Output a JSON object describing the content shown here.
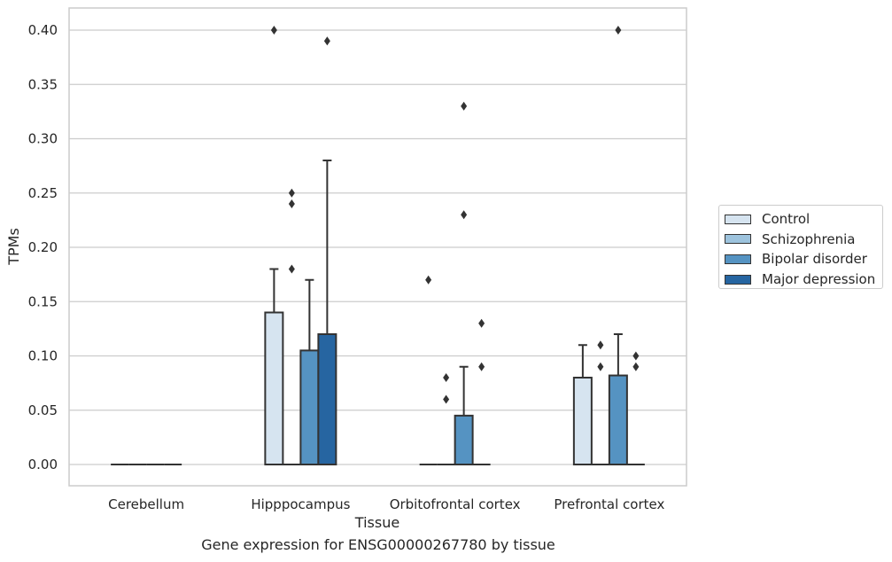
{
  "chart_data": {
    "type": "box",
    "caption": "Gene expression for ENSG00000267780 by tissue",
    "xlabel": "Tissue",
    "ylabel": "TPMs",
    "ylim": [
      -0.02,
      0.42
    ],
    "yticks": [
      0.0,
      0.05,
      0.1,
      0.15,
      0.2,
      0.25,
      0.3,
      0.35,
      0.4
    ],
    "ytick_labels": [
      "0.00",
      "0.05",
      "0.10",
      "0.15",
      "0.20",
      "0.25",
      "0.30",
      "0.35",
      "0.40"
    ],
    "grid": "horizontal",
    "legend_position": "right",
    "categories": [
      "Cerebellum",
      "Hipppocampus",
      "Orbitofrontal cortex",
      "Prefrontal cortex"
    ],
    "series": [
      {
        "name": "Control",
        "color": "#d6e4f0",
        "boxes": [
          {
            "category": "Cerebellum",
            "q1": 0,
            "median": 0,
            "q3": 0,
            "whisker_low": 0,
            "whisker_high": 0,
            "outliers": []
          },
          {
            "category": "Hipppocampus",
            "q1": 0,
            "median": 0,
            "q3": 0.14,
            "whisker_low": 0,
            "whisker_high": 0.18,
            "outliers": [
              0.4
            ]
          },
          {
            "category": "Orbitofrontal cortex",
            "q1": 0,
            "median": 0,
            "q3": 0,
            "whisker_low": 0,
            "whisker_high": 0,
            "outliers": [
              0.17
            ]
          },
          {
            "category": "Prefrontal cortex",
            "q1": 0,
            "median": 0,
            "q3": 0.08,
            "whisker_low": 0,
            "whisker_high": 0.11,
            "outliers": []
          }
        ]
      },
      {
        "name": "Schizophrenia",
        "color": "#9dc3dd",
        "boxes": [
          {
            "category": "Cerebellum",
            "q1": 0,
            "median": 0,
            "q3": 0,
            "whisker_low": 0,
            "whisker_high": 0,
            "outliers": []
          },
          {
            "category": "Hipppocampus",
            "q1": 0,
            "median": 0,
            "q3": 0,
            "whisker_low": 0,
            "whisker_high": 0,
            "outliers": [
              0.25,
              0.24,
              0.18
            ]
          },
          {
            "category": "Orbitofrontal cortex",
            "q1": 0,
            "median": 0,
            "q3": 0,
            "whisker_low": 0,
            "whisker_high": 0,
            "outliers": [
              0.08,
              0.06
            ]
          },
          {
            "category": "Prefrontal cortex",
            "q1": 0,
            "median": 0,
            "q3": 0,
            "whisker_low": 0,
            "whisker_high": 0,
            "outliers": [
              0.11,
              0.09
            ]
          }
        ]
      },
      {
        "name": "Bipolar disorder",
        "color": "#5593c2",
        "boxes": [
          {
            "category": "Cerebellum",
            "q1": 0,
            "median": 0,
            "q3": 0,
            "whisker_low": 0,
            "whisker_high": 0,
            "outliers": []
          },
          {
            "category": "Hipppocampus",
            "q1": 0,
            "median": 0,
            "q3": 0.105,
            "whisker_low": 0,
            "whisker_high": 0.17,
            "outliers": []
          },
          {
            "category": "Orbitofrontal cortex",
            "q1": 0,
            "median": 0,
            "q3": 0.045,
            "whisker_low": 0,
            "whisker_high": 0.09,
            "outliers": [
              0.33,
              0.23
            ]
          },
          {
            "category": "Prefrontal cortex",
            "q1": 0,
            "median": 0,
            "q3": 0.082,
            "whisker_low": 0,
            "whisker_high": 0.12,
            "outliers": [
              0.4
            ]
          }
        ]
      },
      {
        "name": "Major depression",
        "color": "#2665a1",
        "boxes": [
          {
            "category": "Cerebellum",
            "q1": 0,
            "median": 0,
            "q3": 0,
            "whisker_low": 0,
            "whisker_high": 0,
            "outliers": []
          },
          {
            "category": "Hipppocampus",
            "q1": 0,
            "median": 0,
            "q3": 0.12,
            "whisker_low": 0,
            "whisker_high": 0.28,
            "outliers": [
              0.39
            ]
          },
          {
            "category": "Orbitofrontal cortex",
            "q1": 0,
            "median": 0,
            "q3": 0,
            "whisker_low": 0,
            "whisker_high": 0,
            "outliers": [
              0.13,
              0.09
            ]
          },
          {
            "category": "Prefrontal cortex",
            "q1": 0,
            "median": 0,
            "q3": 0,
            "whisker_low": 0,
            "whisker_high": 0,
            "outliers": [
              0.1,
              0.09
            ]
          }
        ]
      }
    ]
  }
}
